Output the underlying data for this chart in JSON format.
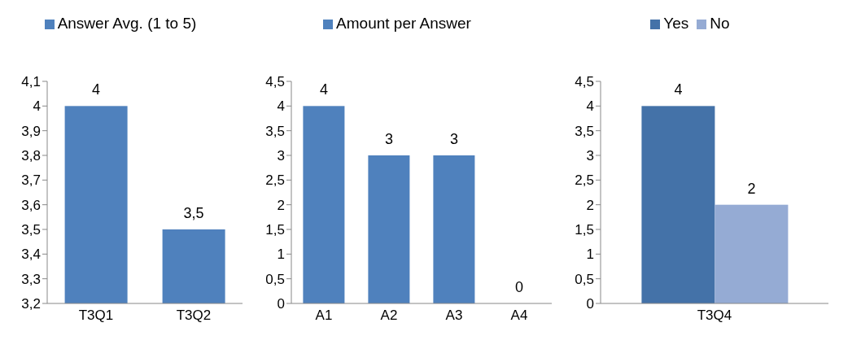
{
  "chart_data": [
    {
      "type": "bar",
      "categories": [
        "T3Q1",
        "T3Q2"
      ],
      "series": [
        {
          "name": "Answer Avg. (1 to 5)",
          "color": "#4f81bd",
          "values": [
            4,
            3.5
          ],
          "value_labels": [
            "4",
            "3,5"
          ]
        }
      ],
      "ylim": [
        3.2,
        4.1
      ],
      "yticks": [
        {
          "value": 3.2,
          "label": "3,2"
        },
        {
          "value": 3.3,
          "label": "3,3"
        },
        {
          "value": 3.4,
          "label": "3,4"
        },
        {
          "value": 3.5,
          "label": "3,5"
        },
        {
          "value": 3.6,
          "label": "3,6"
        },
        {
          "value": 3.7,
          "label": "3,7"
        },
        {
          "value": 3.8,
          "label": "3,8"
        },
        {
          "value": 3.9,
          "label": "3,9"
        },
        {
          "value": 4,
          "label": "4"
        },
        {
          "value": 4.1,
          "label": "4,1"
        }
      ],
      "grid": false,
      "legend": "top"
    },
    {
      "type": "bar",
      "categories": [
        "A1",
        "A2",
        "A3",
        "A4"
      ],
      "series": [
        {
          "name": "Amount per Answer",
          "color": "#4f81bd",
          "values": [
            4,
            3,
            3,
            0
          ],
          "value_labels": [
            "4",
            "3",
            "3",
            "0"
          ]
        }
      ],
      "ylim": [
        0,
        4.5
      ],
      "yticks": [
        0,
        {
          "value": 0.5,
          "label": "0,5"
        },
        1,
        {
          "value": 1.5,
          "label": "1,5"
        },
        2,
        {
          "value": 2.5,
          "label": "2,5"
        },
        3,
        {
          "value": 3.5,
          "label": "3,5"
        },
        4,
        {
          "value": 4.5,
          "label": "4,5"
        }
      ],
      "grid": false,
      "legend": "top"
    },
    {
      "type": "bar",
      "categories": [
        "T3Q4"
      ],
      "series": [
        {
          "name": "Yes",
          "color": "#4472a8",
          "values": [
            4
          ],
          "value_labels": [
            "4"
          ]
        },
        {
          "name": "No",
          "color": "#95abd4",
          "values": [
            2
          ],
          "value_labels": [
            "2"
          ]
        }
      ],
      "ylim": [
        0,
        4.5
      ],
      "yticks": [
        0,
        {
          "value": 0.5,
          "label": "0,5"
        },
        1,
        {
          "value": 1.5,
          "label": "1,5"
        },
        2,
        {
          "value": 2.5,
          "label": "2,5"
        },
        3,
        {
          "value": 3.5,
          "label": "3,5"
        },
        4,
        {
          "value": 4.5,
          "label": "4,5"
        }
      ],
      "grid": false,
      "legend": "top"
    }
  ]
}
